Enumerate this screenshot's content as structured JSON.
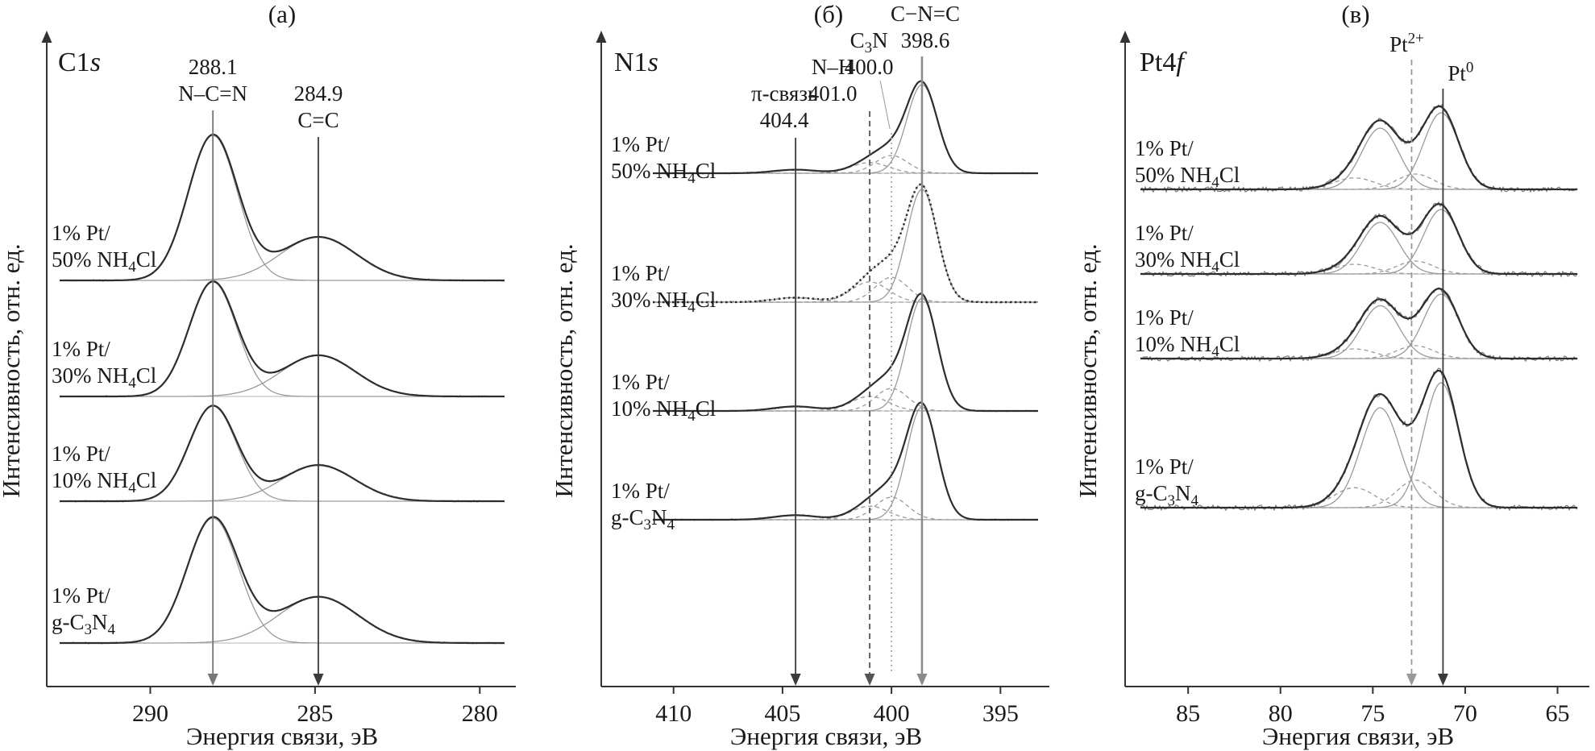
{
  "axis": {
    "xlabel": "Энергия связи, эВ",
    "ylabel": "Интенсивность, отн. ед."
  },
  "samples": [
    [
      "1% Pt/",
      "50% NH_4_Cl"
    ],
    [
      "1% Pt/",
      "30% NH_4_Cl"
    ],
    [
      "1% Pt/",
      "10% NH_4_Cl"
    ],
    [
      "1% Pt/",
      "g-C_3_N_4_"
    ]
  ],
  "chart_data": [
    {
      "type": "line",
      "panel": "(а)",
      "core_level": "C1*s*",
      "x_axis_reversed": true,
      "x_range": [
        292.8,
        279.2
      ],
      "x_ticks": [
        "290",
        "285",
        "280"
      ],
      "xlabel": "Энергия связи, эВ",
      "ylabel": "Интенсивность, отн. ед.",
      "reference_lines": [
        {
          "x": 288.1,
          "labels": [
            "288.1",
            "N–C=N"
          ],
          "style": "solid",
          "color": "#777777",
          "arrow": true
        },
        {
          "x": 284.9,
          "labels": [
            "284.9",
            "C=C"
          ],
          "style": "solid",
          "color": "#3a3a3a",
          "arrow": true
        }
      ],
      "series": [
        {
          "sample": 0,
          "peaks": [
            {
              "center": 288.1,
              "amplitude": 1.0,
              "sigma": 0.75,
              "line": "solid"
            },
            {
              "center": 284.9,
              "amplitude": 0.3,
              "sigma": 1.15,
              "line": "solid"
            }
          ]
        },
        {
          "sample": 1,
          "peaks": [
            {
              "center": 288.1,
              "amplitude": 1.0,
              "sigma": 0.72,
              "line": "solid"
            },
            {
              "center": 284.9,
              "amplitude": 0.36,
              "sigma": 1.12,
              "line": "solid"
            }
          ]
        },
        {
          "sample": 2,
          "peaks": [
            {
              "center": 288.1,
              "amplitude": 1.0,
              "sigma": 0.72,
              "line": "solid"
            },
            {
              "center": 284.9,
              "amplitude": 0.38,
              "sigma": 1.1,
              "line": "solid"
            }
          ]
        },
        {
          "sample": 3,
          "peaks": [
            {
              "center": 288.1,
              "amplitude": 1.0,
              "sigma": 0.78,
              "line": "solid"
            },
            {
              "center": 284.9,
              "amplitude": 0.37,
              "sigma": 1.2,
              "line": "solid"
            }
          ]
        }
      ]
    },
    {
      "type": "line",
      "panel": "(б)",
      "core_level": "N1*s*",
      "x_axis_reversed": true,
      "x_range": [
        412.8,
        393.2
      ],
      "x_ticks": [
        "410",
        "405",
        "400",
        "395"
      ],
      "xlabel": "Энергия связи, эВ",
      "ylabel": "Интенсивность, отн. ед.",
      "reference_lines": [
        {
          "x": 404.4,
          "labels": [
            "π-связь",
            "404.4"
          ],
          "style": "solid",
          "color": "#3a3a3a",
          "arrow": true
        },
        {
          "x": 401.0,
          "labels": [
            "N–H",
            "401.0"
          ],
          "style": "dashed",
          "color": "#555555",
          "arrow": true
        },
        {
          "x": 400.0,
          "labels": [
            "C_3_N",
            "400.0"
          ],
          "style": "dotted",
          "color": "#aaaaaa",
          "arrow": false,
          "leader": true
        },
        {
          "x": 398.6,
          "labels": [
            "C−N=C",
            "398.6"
          ],
          "style": "solid",
          "color": "#8a8a8a",
          "arrow": true
        }
      ],
      "series": [
        {
          "sample": 0,
          "peaks": [
            {
              "center": 398.6,
              "amplitude": 1.0,
              "sigma": 0.7,
              "line": "solid"
            },
            {
              "center": 400.0,
              "amplitude": 0.2,
              "sigma": 0.75,
              "line": "dashed"
            },
            {
              "center": 401.0,
              "amplitude": 0.12,
              "sigma": 0.85,
              "line": "dashed"
            },
            {
              "center": 404.4,
              "amplitude": 0.04,
              "sigma": 1.0,
              "line": "dashed"
            }
          ]
        },
        {
          "sample": 1,
          "envelope": "dotted",
          "peaks": [
            {
              "center": 398.6,
              "amplitude": 1.0,
              "sigma": 0.7,
              "line": "solid"
            },
            {
              "center": 400.0,
              "amplitude": 0.22,
              "sigma": 0.75,
              "line": "dashed"
            },
            {
              "center": 401.0,
              "amplitude": 0.18,
              "sigma": 0.85,
              "line": "dashed"
            },
            {
              "center": 404.4,
              "amplitude": 0.04,
              "sigma": 1.0,
              "line": "dashed"
            }
          ]
        },
        {
          "sample": 2,
          "peaks": [
            {
              "center": 398.6,
              "amplitude": 1.0,
              "sigma": 0.7,
              "line": "solid"
            },
            {
              "center": 400.0,
              "amplitude": 0.2,
              "sigma": 0.75,
              "line": "dashed"
            },
            {
              "center": 401.0,
              "amplitude": 0.13,
              "sigma": 0.85,
              "line": "dashed"
            },
            {
              "center": 404.4,
              "amplitude": 0.04,
              "sigma": 1.0,
              "line": "dashed"
            }
          ]
        },
        {
          "sample": 3,
          "peaks": [
            {
              "center": 398.6,
              "amplitude": 1.0,
              "sigma": 0.7,
              "line": "solid"
            },
            {
              "center": 400.0,
              "amplitude": 0.2,
              "sigma": 0.75,
              "line": "dashed"
            },
            {
              "center": 401.0,
              "amplitude": 0.12,
              "sigma": 0.85,
              "line": "dashed"
            },
            {
              "center": 404.4,
              "amplitude": 0.04,
              "sigma": 1.0,
              "line": "dashed"
            }
          ]
        }
      ]
    },
    {
      "type": "line",
      "panel": "(в)",
      "core_level": "Pt4*f*",
      "x_axis_reversed": true,
      "x_range": [
        87.8,
        63.8
      ],
      "x_ticks": [
        "85",
        "80",
        "75",
        "70",
        "65"
      ],
      "xlabel": "Энергия связи, эВ",
      "ylabel": "Интенсивность, отн. ед.",
      "reference_lines": [
        {
          "x": 72.9,
          "labels": [
            "Pt^2+^"
          ],
          "style": "dashed",
          "color": "#999999",
          "arrow": true
        },
        {
          "x": 71.2,
          "labels": [
            "Pt^0^"
          ],
          "style": "solid",
          "color": "#3a3a3a",
          "arrow": true
        }
      ],
      "series": [
        {
          "sample": 0,
          "noisy": true,
          "peaks": [
            {
              "center": 74.6,
              "amplitude": 0.8,
              "sigma": 1.0,
              "line": "solid"
            },
            {
              "center": 71.3,
              "amplitude": 1.0,
              "sigma": 0.95,
              "line": "solid"
            },
            {
              "center": 76.0,
              "amplitude": 0.15,
              "sigma": 1.1,
              "line": "dashed"
            },
            {
              "center": 72.7,
              "amplitude": 0.2,
              "sigma": 1.0,
              "line": "dashed"
            }
          ]
        },
        {
          "sample": 1,
          "noisy": true,
          "peaks": [
            {
              "center": 74.6,
              "amplitude": 0.8,
              "sigma": 1.0,
              "line": "solid"
            },
            {
              "center": 71.3,
              "amplitude": 1.0,
              "sigma": 0.95,
              "line": "solid"
            },
            {
              "center": 76.0,
              "amplitude": 0.15,
              "sigma": 1.1,
              "line": "dashed"
            },
            {
              "center": 72.7,
              "amplitude": 0.2,
              "sigma": 1.0,
              "line": "dashed"
            }
          ]
        },
        {
          "sample": 2,
          "noisy": true,
          "peaks": [
            {
              "center": 74.6,
              "amplitude": 0.82,
              "sigma": 1.0,
              "line": "solid"
            },
            {
              "center": 71.3,
              "amplitude": 1.0,
              "sigma": 0.95,
              "line": "solid"
            },
            {
              "center": 76.0,
              "amplitude": 0.15,
              "sigma": 1.1,
              "line": "dashed"
            },
            {
              "center": 72.7,
              "amplitude": 0.2,
              "sigma": 1.0,
              "line": "dashed"
            }
          ]
        },
        {
          "sample": 3,
          "noisy": true,
          "peaks": [
            {
              "center": 74.6,
              "amplitude": 0.8,
              "sigma": 1.05,
              "line": "solid"
            },
            {
              "center": 71.3,
              "amplitude": 1.0,
              "sigma": 0.95,
              "line": "solid"
            },
            {
              "center": 76.0,
              "amplitude": 0.16,
              "sigma": 1.1,
              "line": "dashed"
            },
            {
              "center": 72.7,
              "amplitude": 0.22,
              "sigma": 1.0,
              "line": "dashed"
            }
          ]
        }
      ]
    }
  ]
}
